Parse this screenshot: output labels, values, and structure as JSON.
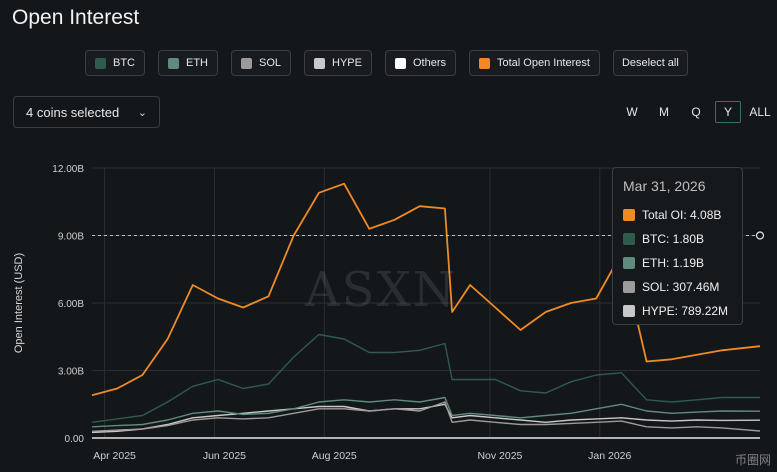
{
  "header": {
    "title": "Open Interest"
  },
  "legend": [
    {
      "label": "BTC",
      "color": "#2f5a4c"
    },
    {
      "label": "ETH",
      "color": "#5f8a7c"
    },
    {
      "label": "SOL",
      "color": "#9c9a9a"
    },
    {
      "label": "HYPE",
      "color": "#c8c8c8"
    },
    {
      "label": "Others",
      "color": "#ffffff"
    },
    {
      "label": "Total Open Interest",
      "color": "#f08a24"
    }
  ],
  "deselect_label": "Deselect all",
  "coin_selector": {
    "label": "4 coins selected"
  },
  "ranges": [
    {
      "label": "W",
      "active": false
    },
    {
      "label": "M",
      "active": false
    },
    {
      "label": "Q",
      "active": false
    },
    {
      "label": "Y",
      "active": true
    },
    {
      "label": "ALL",
      "active": false
    }
  ],
  "tooltip": {
    "date": "Mar 31, 2026",
    "rows": [
      {
        "label": "Total OI: 4.08B",
        "color": "#f08a24"
      },
      {
        "label": "BTC: 1.80B",
        "color": "#2f5a4c"
      },
      {
        "label": "ETH: 1.19B",
        "color": "#5f8a7c"
      },
      {
        "label": "SOL: 307.46M",
        "color": "#9c9a9a"
      },
      {
        "label": "HYPE: 789.22M",
        "color": "#c8c8c8"
      }
    ]
  },
  "watermark": "ASXN",
  "logo_text": "币圈网",
  "chart_data": {
    "type": "line",
    "title": "Open Interest",
    "ylabel": "Open Interest (USD)",
    "xlabel": "",
    "x_range": [
      "2025-03-25",
      "2026-03-31"
    ],
    "ylim": [
      0,
      12
    ],
    "y_unit": "B",
    "yticks": [
      "0.00",
      "3.00B",
      "6.00B",
      "9.00B",
      "12.00B"
    ],
    "xticks": [
      "Apr 2025",
      "Jun 2025",
      "Aug 2025",
      "Nov 2025",
      "Jan 2026"
    ],
    "x": [
      "2025-03-25",
      "2025-04-08",
      "2025-04-22",
      "2025-05-06",
      "2025-05-20",
      "2025-06-03",
      "2025-06-17",
      "2025-07-01",
      "2025-07-15",
      "2025-07-29",
      "2025-08-12",
      "2025-08-26",
      "2025-09-09",
      "2025-09-23",
      "2025-10-07",
      "2025-10-11",
      "2025-10-21",
      "2025-11-04",
      "2025-11-18",
      "2025-12-02",
      "2025-12-16",
      "2025-12-30",
      "2026-01-13",
      "2026-01-27",
      "2026-02-10",
      "2026-02-24",
      "2026-03-10",
      "2026-03-31"
    ],
    "series": [
      {
        "name": "Total OI",
        "color": "#f08a24",
        "values": [
          1.9,
          2.2,
          2.8,
          4.4,
          6.8,
          6.2,
          5.8,
          6.3,
          9.0,
          10.9,
          11.3,
          9.3,
          9.7,
          10.3,
          10.2,
          5.6,
          6.8,
          5.8,
          4.8,
          5.6,
          6.0,
          6.2,
          8.2,
          3.4,
          3.5,
          3.7,
          3.9,
          4.08
        ]
      },
      {
        "name": "BTC",
        "color": "#2f5a4c",
        "values": [
          0.7,
          0.85,
          1.0,
          1.6,
          2.3,
          2.6,
          2.2,
          2.4,
          3.6,
          4.6,
          4.4,
          3.8,
          3.8,
          3.9,
          4.2,
          2.6,
          2.6,
          2.6,
          2.1,
          2.0,
          2.5,
          2.8,
          2.9,
          1.7,
          1.6,
          1.7,
          1.8,
          1.8
        ]
      },
      {
        "name": "ETH",
        "color": "#5f8a7c",
        "values": [
          0.5,
          0.55,
          0.6,
          0.8,
          1.1,
          1.2,
          1.05,
          1.1,
          1.3,
          1.6,
          1.7,
          1.6,
          1.7,
          1.6,
          1.8,
          1.0,
          1.1,
          1.0,
          0.9,
          1.0,
          1.1,
          1.3,
          1.5,
          1.2,
          1.1,
          1.15,
          1.2,
          1.19
        ]
      },
      {
        "name": "SOL",
        "color": "#9c9a9a",
        "values": [
          0.3,
          0.35,
          0.4,
          0.55,
          0.8,
          0.9,
          0.85,
          0.9,
          1.1,
          1.3,
          1.3,
          1.2,
          1.3,
          1.2,
          1.6,
          0.7,
          0.8,
          0.7,
          0.6,
          0.6,
          0.65,
          0.7,
          0.75,
          0.5,
          0.45,
          0.5,
          0.45,
          0.31
        ]
      },
      {
        "name": "HYPE",
        "color": "#c8c8c8",
        "values": [
          0.25,
          0.3,
          0.4,
          0.6,
          0.9,
          1.0,
          1.1,
          1.2,
          1.3,
          1.4,
          1.4,
          1.2,
          1.3,
          1.3,
          1.5,
          0.9,
          1.0,
          0.9,
          0.8,
          0.7,
          0.8,
          0.85,
          0.9,
          0.8,
          0.75,
          0.8,
          0.78,
          0.79
        ]
      }
    ],
    "crosshair": {
      "x": "2026-03-31",
      "y": 9.0
    }
  }
}
